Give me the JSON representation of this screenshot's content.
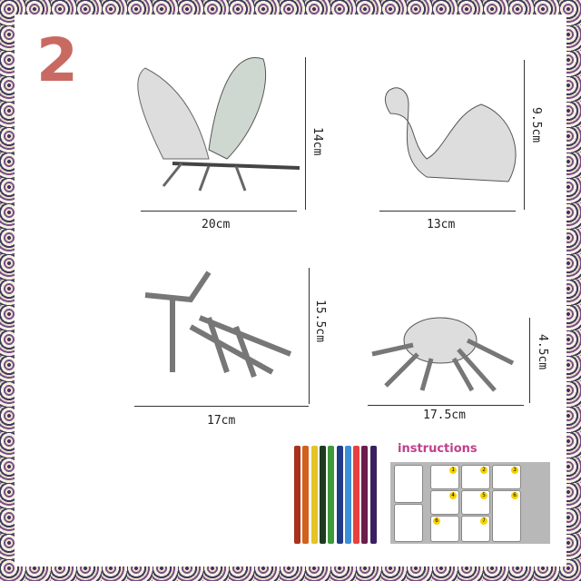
{
  "badge_number": "2",
  "models": [
    {
      "name": "butterfly",
      "width": "20cm",
      "height": "14cm"
    },
    {
      "name": "swan",
      "width": "13cm",
      "height": "9.5cm"
    },
    {
      "name": "mantis",
      "width": "17cm",
      "height": "15.5cm"
    },
    {
      "name": "spider",
      "width": "17.5cm",
      "height": "4.5cm"
    }
  ],
  "marker_colors": [
    "#a8321c",
    "#d0621e",
    "#e4c427",
    "#1f3a22",
    "#3f9a3a",
    "#1e3a8a",
    "#3c8ed8",
    "#e84040",
    "#6a1e4a",
    "#3a2060"
  ],
  "instructions": {
    "title": "instructions",
    "steps": [
      "1",
      "2",
      "3",
      "4",
      "5",
      "6",
      "6",
      "7"
    ]
  }
}
